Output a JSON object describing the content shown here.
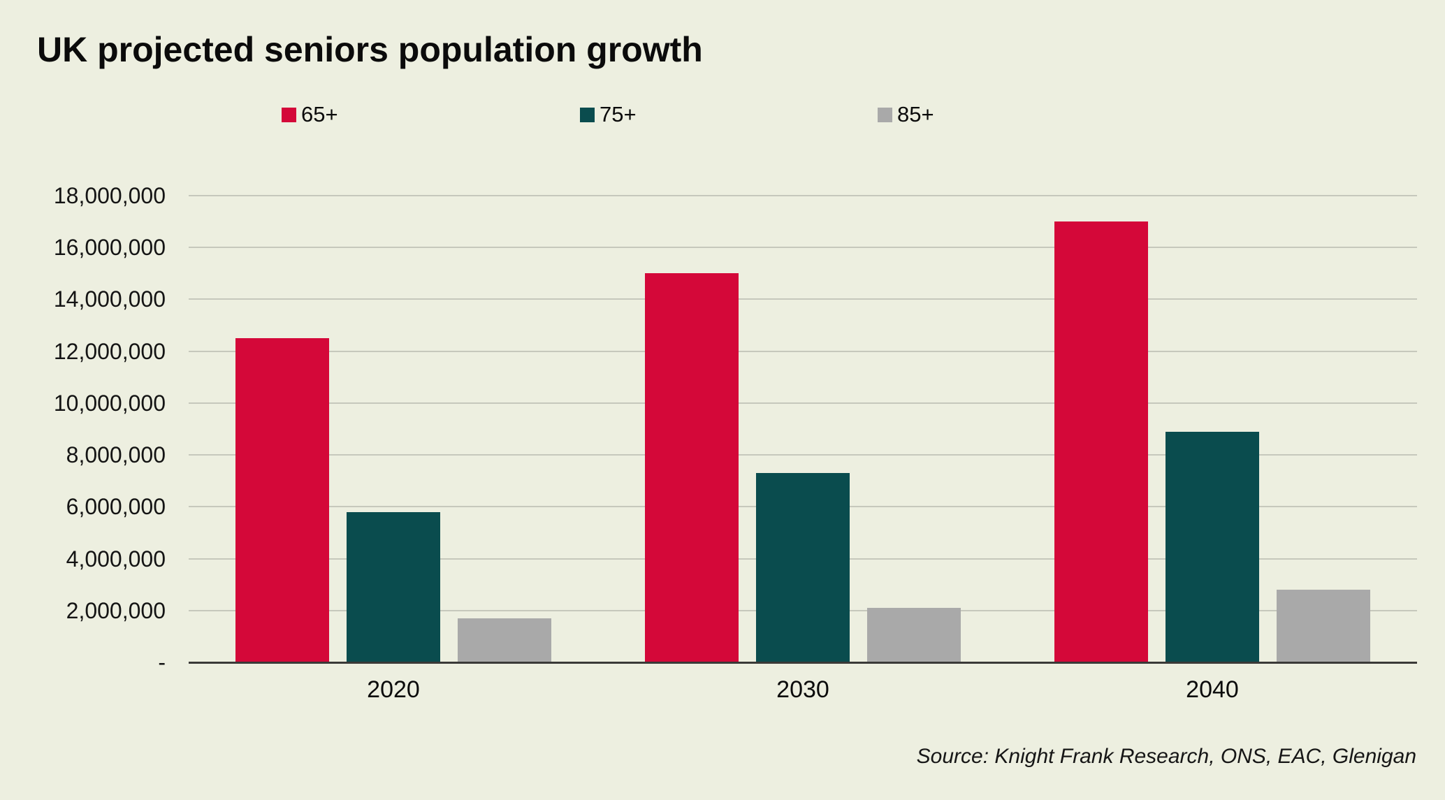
{
  "title": "UK projected seniors population growth",
  "source_note": "Source: Knight Frank Research, ONS, EAC, Glenigan",
  "colors": {
    "background": "#edefe0",
    "series_65": "#d40839",
    "series_75": "#0a4c4e",
    "series_85": "#a9a9a9",
    "gridline": "#c6c8bc",
    "axis_line": "#3a3a38",
    "text": "#0b0b0b"
  },
  "chart_data": {
    "type": "bar",
    "title": "UK projected seniors population growth",
    "categories": [
      "2020",
      "2030",
      "2040"
    ],
    "series": [
      {
        "name": "65+",
        "color": "#d40839",
        "values": [
          12500000,
          15000000,
          17000000
        ]
      },
      {
        "name": "75+",
        "color": "#0a4c4e",
        "values": [
          5800000,
          7300000,
          8900000
        ]
      },
      {
        "name": "85+",
        "color": "#a9a9a9",
        "values": [
          1700000,
          2100000,
          2800000
        ]
      }
    ],
    "xlabel": "",
    "ylabel": "",
    "ylim": [
      0,
      18000000
    ],
    "ytick_step": 2000000,
    "ytick_labels": [
      "-",
      "2,000,000",
      "4,000,000",
      "6,000,000",
      "8,000,000",
      "10,000,000",
      "12,000,000",
      "14,000,000",
      "16,000,000",
      "18,000,000"
    ],
    "grid": true,
    "legend_position": "top"
  },
  "legend": {
    "items": [
      {
        "label": "65+"
      },
      {
        "label": "75+"
      },
      {
        "label": "85+"
      }
    ]
  }
}
